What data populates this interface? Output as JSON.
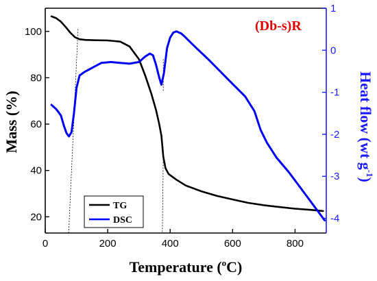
{
  "chart_data": {
    "type": "line",
    "annotation": "(Db-s)R",
    "xlabel": "Temperature (°C)",
    "xlabel_main": "Temperature (",
    "xlabel_sup": "o",
    "xlabel_end": "C)",
    "ylabel": "Mass (%)",
    "y2label": "Heat flow (wt g⁻¹)",
    "y2label_main": "Heat flow (wt g",
    "y2label_sup": "-1",
    "y2label_end": ")",
    "xlim": [
      0,
      900
    ],
    "ylim": [
      13,
      110
    ],
    "y2lim": [
      -4.35,
      1.0
    ],
    "xticks": [
      0,
      200,
      400,
      600,
      800
    ],
    "yticks": [
      20,
      40,
      60,
      80,
      100
    ],
    "y2ticks": [
      1,
      0,
      -1,
      -2,
      -3,
      -4
    ],
    "grid": false,
    "legend_position": "bottom-left",
    "series": [
      {
        "name": "TG",
        "axis": "left",
        "color": "#000000",
        "points": [
          [
            20,
            106.5
          ],
          [
            35,
            105.7
          ],
          [
            50,
            104.2
          ],
          [
            65,
            102
          ],
          [
            80,
            99.5
          ],
          [
            95,
            97.5
          ],
          [
            110,
            96.6
          ],
          [
            130,
            96.3
          ],
          [
            160,
            96.2
          ],
          [
            200,
            96.1
          ],
          [
            240,
            95.6
          ],
          [
            270,
            93.5
          ],
          [
            300,
            88
          ],
          [
            320,
            81
          ],
          [
            340,
            73
          ],
          [
            355,
            66
          ],
          [
            365,
            60
          ],
          [
            372,
            55
          ],
          [
            378,
            46
          ],
          [
            385,
            41
          ],
          [
            395,
            38.5
          ],
          [
            420,
            36
          ],
          [
            450,
            33.5
          ],
          [
            500,
            31
          ],
          [
            550,
            29
          ],
          [
            600,
            27.5
          ],
          [
            650,
            26
          ],
          [
            700,
            25
          ],
          [
            750,
            24.2
          ],
          [
            800,
            23.5
          ],
          [
            850,
            23
          ],
          [
            890,
            22.5
          ]
        ]
      },
      {
        "name": "DSC",
        "axis": "right",
        "color": "#0000ff",
        "points": [
          [
            20,
            -1.3
          ],
          [
            35,
            -1.4
          ],
          [
            50,
            -1.55
          ],
          [
            60,
            -1.8
          ],
          [
            68,
            -1.97
          ],
          [
            76,
            -2.05
          ],
          [
            84,
            -1.95
          ],
          [
            92,
            -1.5
          ],
          [
            100,
            -0.9
          ],
          [
            110,
            -0.6
          ],
          [
            125,
            -0.52
          ],
          [
            150,
            -0.42
          ],
          [
            180,
            -0.3
          ],
          [
            210,
            -0.28
          ],
          [
            240,
            -0.3
          ],
          [
            270,
            -0.32
          ],
          [
            300,
            -0.28
          ],
          [
            320,
            -0.15
          ],
          [
            335,
            -0.08
          ],
          [
            345,
            -0.12
          ],
          [
            355,
            -0.35
          ],
          [
            365,
            -0.65
          ],
          [
            372,
            -0.82
          ],
          [
            380,
            -0.55
          ],
          [
            390,
            0.05
          ],
          [
            400,
            0.3
          ],
          [
            410,
            0.42
          ],
          [
            420,
            0.45
          ],
          [
            435,
            0.4
          ],
          [
            450,
            0.3
          ],
          [
            480,
            0.08
          ],
          [
            520,
            -0.2
          ],
          [
            560,
            -0.5
          ],
          [
            600,
            -0.8
          ],
          [
            640,
            -1.1
          ],
          [
            670,
            -1.45
          ],
          [
            690,
            -1.9
          ],
          [
            710,
            -2.2
          ],
          [
            740,
            -2.55
          ],
          [
            780,
            -2.9
          ],
          [
            820,
            -3.3
          ],
          [
            860,
            -3.7
          ],
          [
            895,
            -4.05
          ]
        ]
      }
    ]
  }
}
